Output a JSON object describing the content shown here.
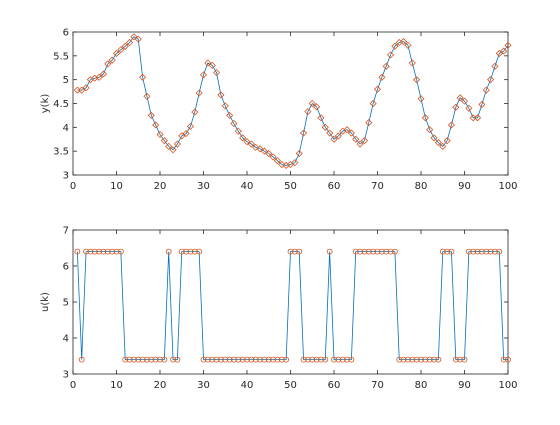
{
  "chart_data": [
    {
      "type": "line",
      "title": "",
      "xlabel": "",
      "ylabel": "y(k)",
      "xlim": [
        0,
        100
      ],
      "ylim": [
        3,
        6
      ],
      "xticks": [
        0,
        10,
        20,
        30,
        40,
        50,
        60,
        70,
        80,
        90,
        100
      ],
      "yticks": [
        3,
        3.5,
        4,
        4.5,
        5,
        5.5,
        6
      ],
      "ytick_labels": [
        "3",
        "3.5",
        "4",
        "4.5",
        "5",
        "5.5",
        "6"
      ],
      "grid": false,
      "line_color": "#0072BD",
      "marker_color": "#D95319",
      "marker": "diamond",
      "x": [
        1,
        2,
        3,
        4,
        5,
        6,
        7,
        8,
        9,
        10,
        11,
        12,
        13,
        14,
        15,
        16,
        17,
        18,
        19,
        20,
        21,
        22,
        23,
        24,
        25,
        26,
        27,
        28,
        29,
        30,
        31,
        32,
        33,
        34,
        35,
        36,
        37,
        38,
        39,
        40,
        41,
        42,
        43,
        44,
        45,
        46,
        47,
        48,
        49,
        50,
        51,
        52,
        53,
        54,
        55,
        56,
        57,
        58,
        59,
        60,
        61,
        62,
        63,
        64,
        65,
        66,
        67,
        68,
        69,
        70,
        71,
        72,
        73,
        74,
        75,
        76,
        77,
        78,
        79,
        80,
        81,
        82,
        83,
        84,
        85,
        86,
        87,
        88,
        89,
        90,
        91,
        92,
        93,
        94,
        95,
        96,
        97,
        98,
        99,
        100
      ],
      "values": [
        4.78,
        4.78,
        4.83,
        5.0,
        5.03,
        5.05,
        5.12,
        5.33,
        5.41,
        5.55,
        5.63,
        5.7,
        5.78,
        5.9,
        5.85,
        5.05,
        4.65,
        4.25,
        4.05,
        3.85,
        3.72,
        3.6,
        3.53,
        3.65,
        3.82,
        3.87,
        4.02,
        4.32,
        4.72,
        5.1,
        5.35,
        5.3,
        5.15,
        4.68,
        4.45,
        4.25,
        4.08,
        3.92,
        3.78,
        3.7,
        3.65,
        3.58,
        3.55,
        3.5,
        3.45,
        3.38,
        3.3,
        3.22,
        3.2,
        3.22,
        3.26,
        3.45,
        3.88,
        4.33,
        4.5,
        4.43,
        4.2,
        4.0,
        3.88,
        3.75,
        3.82,
        3.92,
        3.95,
        3.88,
        3.75,
        3.65,
        3.72,
        4.1,
        4.5,
        4.8,
        5.05,
        5.28,
        5.52,
        5.7,
        5.78,
        5.8,
        5.72,
        5.35,
        5.0,
        4.6,
        4.2,
        3.95,
        3.78,
        3.68,
        3.6,
        3.72,
        4.05,
        4.42,
        4.62,
        4.55,
        4.4,
        4.2,
        4.2,
        4.48,
        4.78,
        5.0,
        5.28,
        5.55,
        5.6,
        5.72
      ]
    },
    {
      "type": "line",
      "title": "",
      "xlabel": "",
      "ylabel": "u(k)",
      "xlim": [
        0,
        100
      ],
      "ylim": [
        3,
        7
      ],
      "xticks": [
        0,
        10,
        20,
        30,
        40,
        50,
        60,
        70,
        80,
        90,
        100
      ],
      "yticks": [
        3,
        4,
        5,
        6,
        7
      ],
      "ytick_labels": [
        "3",
        "4",
        "5",
        "6",
        "7"
      ],
      "grid": false,
      "line_color": "#0072BD",
      "marker_color": "#D95319",
      "marker": "circle",
      "x": [
        1,
        2,
        3,
        4,
        5,
        6,
        7,
        8,
        9,
        10,
        11,
        12,
        13,
        14,
        15,
        16,
        17,
        18,
        19,
        20,
        21,
        22,
        23,
        24,
        25,
        26,
        27,
        28,
        29,
        30,
        31,
        32,
        33,
        34,
        35,
        36,
        37,
        38,
        39,
        40,
        41,
        42,
        43,
        44,
        45,
        46,
        47,
        48,
        49,
        50,
        51,
        52,
        53,
        54,
        55,
        56,
        57,
        58,
        59,
        60,
        61,
        62,
        63,
        64,
        65,
        66,
        67,
        68,
        69,
        70,
        71,
        72,
        73,
        74,
        75,
        76,
        77,
        78,
        79,
        80,
        81,
        82,
        83,
        84,
        85,
        86,
        87,
        88,
        89,
        90,
        91,
        92,
        93,
        94,
        95,
        96,
        97,
        98,
        99,
        100
      ],
      "values": [
        6.4,
        3.4,
        6.4,
        6.4,
        6.4,
        6.4,
        6.4,
        6.4,
        6.4,
        6.4,
        6.4,
        3.4,
        3.4,
        3.4,
        3.4,
        3.4,
        3.4,
        3.4,
        3.4,
        3.4,
        3.4,
        6.4,
        3.4,
        3.4,
        6.4,
        6.4,
        6.4,
        6.4,
        6.4,
        3.4,
        3.4,
        3.4,
        3.4,
        3.4,
        3.4,
        3.4,
        3.4,
        3.4,
        3.4,
        3.4,
        3.4,
        3.4,
        3.4,
        3.4,
        3.4,
        3.4,
        3.4,
        3.4,
        3.4,
        6.4,
        6.4,
        6.4,
        3.4,
        3.4,
        3.4,
        3.4,
        3.4,
        3.4,
        6.4,
        3.4,
        3.4,
        3.4,
        3.4,
        3.4,
        6.4,
        6.4,
        6.4,
        6.4,
        6.4,
        6.4,
        6.4,
        6.4,
        6.4,
        6.4,
        3.4,
        3.4,
        3.4,
        3.4,
        3.4,
        3.4,
        3.4,
        3.4,
        3.4,
        3.4,
        6.4,
        6.4,
        6.4,
        3.4,
        3.4,
        3.4,
        6.4,
        6.4,
        6.4,
        6.4,
        6.4,
        6.4,
        6.4,
        6.4,
        3.4,
        3.4
      ]
    }
  ]
}
